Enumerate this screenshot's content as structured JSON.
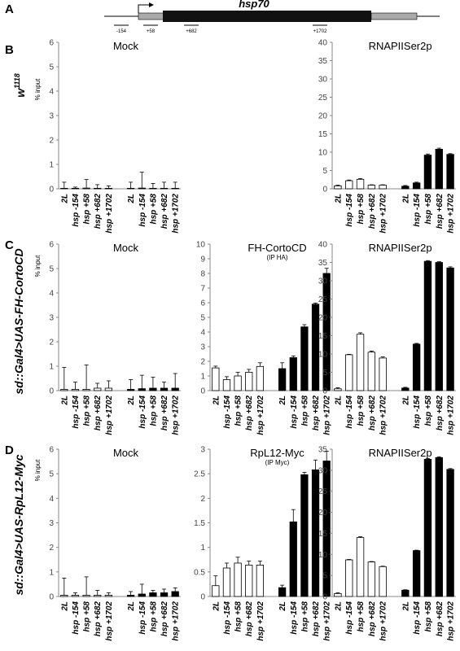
{
  "figure": {
    "panel_labels": [
      "A",
      "B",
      "C",
      "D"
    ],
    "gene": {
      "name": "hsp70",
      "positions": [
        "-154",
        "+58",
        "+682",
        "+1702"
      ]
    },
    "rows": [
      {
        "label": {
          "text": "w",
          "superscript": "1118"
        },
        "y_label": "% input"
      },
      {
        "label": {
          "text": "sd::Gal4>UAS-FH-CortoCD"
        },
        "y_label": "% input"
      },
      {
        "label": {
          "text": "sd::Gal4>UAS-RpL12-Myc"
        },
        "y_label": "% input"
      }
    ]
  },
  "chart_data": [
    {
      "type": "bar",
      "title": "Mock",
      "categories": [
        "2L",
        "hsp -154",
        "hsp +58",
        "hsp +682",
        "hsp +1702"
      ],
      "series": [
        {
          "color": "#ffffff",
          "values": [
            0.02,
            0.02,
            0.03,
            0.02,
            0.02
          ],
          "errors": [
            0.25,
            0.05,
            0.35,
            0.15,
            0.1
          ]
        },
        {
          "color": "#000000",
          "values": [
            0.02,
            0.03,
            0.02,
            0.02,
            0.02
          ],
          "errors": [
            0.25,
            0.65,
            0.2,
            0.25,
            0.25
          ]
        }
      ],
      "ylim": [
        0,
        6
      ],
      "yticks": [
        0,
        1,
        2,
        3,
        4,
        5,
        6
      ]
    },
    {
      "type": "bar",
      "title": "RNAPIISer2p",
      "categories": [
        "2L",
        "hsp -154",
        "hsp +58",
        "hsp +682",
        "hsp +1702"
      ],
      "series": [
        {
          "color": "#ffffff",
          "values": [
            0.8,
            2.2,
            2.6,
            1.0,
            1.0
          ],
          "errors": [
            0.2,
            0.2,
            0.2,
            0.1,
            0.1
          ]
        },
        {
          "color": "#000000",
          "values": [
            0.7,
            1.6,
            9.2,
            10.8,
            9.4
          ],
          "errors": [
            0.2,
            0.2,
            0.3,
            0.3,
            0.2
          ]
        }
      ],
      "ylim": [
        0,
        40
      ],
      "yticks": [
        0,
        5,
        10,
        15,
        20,
        25,
        30,
        35,
        40
      ]
    },
    {
      "type": "bar",
      "title": "Mock",
      "categories": [
        "2L",
        "hsp -154",
        "hsp +58",
        "hsp +682",
        "hsp +1702"
      ],
      "series": [
        {
          "color": "#ffffff",
          "values": [
            0.05,
            0.05,
            0.05,
            0.1,
            0.1
          ],
          "errors": [
            0.9,
            0.3,
            1.0,
            0.2,
            0.3
          ]
        },
        {
          "color": "#000000",
          "values": [
            0.05,
            0.08,
            0.1,
            0.1,
            0.1
          ],
          "errors": [
            0.4,
            0.55,
            0.45,
            0.25,
            0.6
          ]
        }
      ],
      "ylim": [
        0,
        6
      ],
      "yticks": [
        0,
        1,
        2,
        3,
        4,
        5,
        6
      ]
    },
    {
      "type": "bar",
      "title": "FH-CortoCD",
      "subtitle": "(IP HA)",
      "categories": [
        "2L",
        "hsp -154",
        "hsp +58",
        "hsp +682",
        "hsp +1702"
      ],
      "series": [
        {
          "color": "#ffffff",
          "values": [
            1.55,
            0.75,
            1.0,
            1.25,
            1.65
          ],
          "errors": [
            0.12,
            0.2,
            0.25,
            0.2,
            0.25
          ]
        },
        {
          "color": "#000000",
          "values": [
            1.5,
            2.25,
            4.35,
            5.9,
            8.0
          ],
          "errors": [
            0.4,
            0.12,
            0.15,
            0.07,
            0.35
          ]
        }
      ],
      "ylim": [
        0,
        10
      ],
      "yticks": [
        0,
        1,
        2,
        3,
        4,
        5,
        6,
        7,
        8,
        9,
        10
      ]
    },
    {
      "type": "bar",
      "title": "RNAPIISer2p",
      "categories": [
        "2L",
        "hsp -154",
        "hsp +58",
        "hsp +682",
        "hsp +1702"
      ],
      "series": [
        {
          "color": "#ffffff",
          "values": [
            0.5,
            9.8,
            15.4,
            10.5,
            8.9
          ],
          "errors": [
            0.3,
            0.1,
            0.4,
            0.3,
            0.3
          ]
        },
        {
          "color": "#000000",
          "values": [
            0.7,
            12.7,
            35.3,
            35.0,
            33.5
          ],
          "errors": [
            0.2,
            0.2,
            0.2,
            0.2,
            0.3
          ]
        }
      ],
      "ylim": [
        0,
        40
      ],
      "yticks": [
        0,
        5,
        10,
        15,
        20,
        25,
        30,
        35,
        40
      ]
    },
    {
      "type": "bar",
      "title": "Mock",
      "categories": [
        "2L",
        "hsp -154",
        "hsp +58",
        "hsp +682",
        "hsp +1702"
      ],
      "series": [
        {
          "color": "#ffffff",
          "values": [
            0.05,
            0.05,
            0.05,
            0.05,
            0.05
          ],
          "errors": [
            0.7,
            0.1,
            0.75,
            0.2,
            0.1
          ]
        },
        {
          "color": "#000000",
          "values": [
            0.05,
            0.1,
            0.15,
            0.15,
            0.2
          ],
          "errors": [
            0.15,
            0.4,
            0.1,
            0.15,
            0.15
          ]
        }
      ],
      "ylim": [
        0,
        6
      ],
      "yticks": [
        0,
        1,
        2,
        3,
        4,
        5,
        6
      ]
    },
    {
      "type": "bar",
      "title": "RpL12-Myc",
      "subtitle": "(IP Myc)",
      "categories": [
        "2L",
        "hsp -154",
        "hsp +58",
        "hsp +682",
        "hsp +1702"
      ],
      "series": [
        {
          "color": "#ffffff",
          "values": [
            0.22,
            0.58,
            0.68,
            0.64,
            0.64
          ],
          "errors": [
            0.2,
            0.1,
            0.12,
            0.08,
            0.08
          ]
        },
        {
          "color": "#000000",
          "values": [
            0.18,
            1.52,
            2.48,
            2.58,
            2.76
          ],
          "errors": [
            0.05,
            0.25,
            0.05,
            0.2,
            0.2
          ]
        }
      ],
      "ylim": [
        0,
        3
      ],
      "yticks": [
        0,
        0.5,
        1,
        1.5,
        2,
        2.5,
        3
      ]
    },
    {
      "type": "bar",
      "title": "RNAPIISer2p",
      "categories": [
        "2L",
        "hsp -154",
        "hsp +58",
        "hsp +682",
        "hsp +1702"
      ],
      "series": [
        {
          "color": "#ffffff",
          "values": [
            0.7,
            8.7,
            14.0,
            8.2,
            7.1
          ],
          "errors": [
            0.2,
            0.1,
            0.2,
            0.1,
            0.1
          ]
        },
        {
          "color": "#000000",
          "values": [
            1.5,
            10.9,
            32.6,
            33.0,
            30.2
          ],
          "errors": [
            0.1,
            0.1,
            0.2,
            0.2,
            0.2
          ]
        }
      ],
      "ylim": [
        0,
        35
      ],
      "yticks": [
        0,
        5,
        10,
        15,
        20,
        25,
        30,
        35
      ]
    }
  ]
}
